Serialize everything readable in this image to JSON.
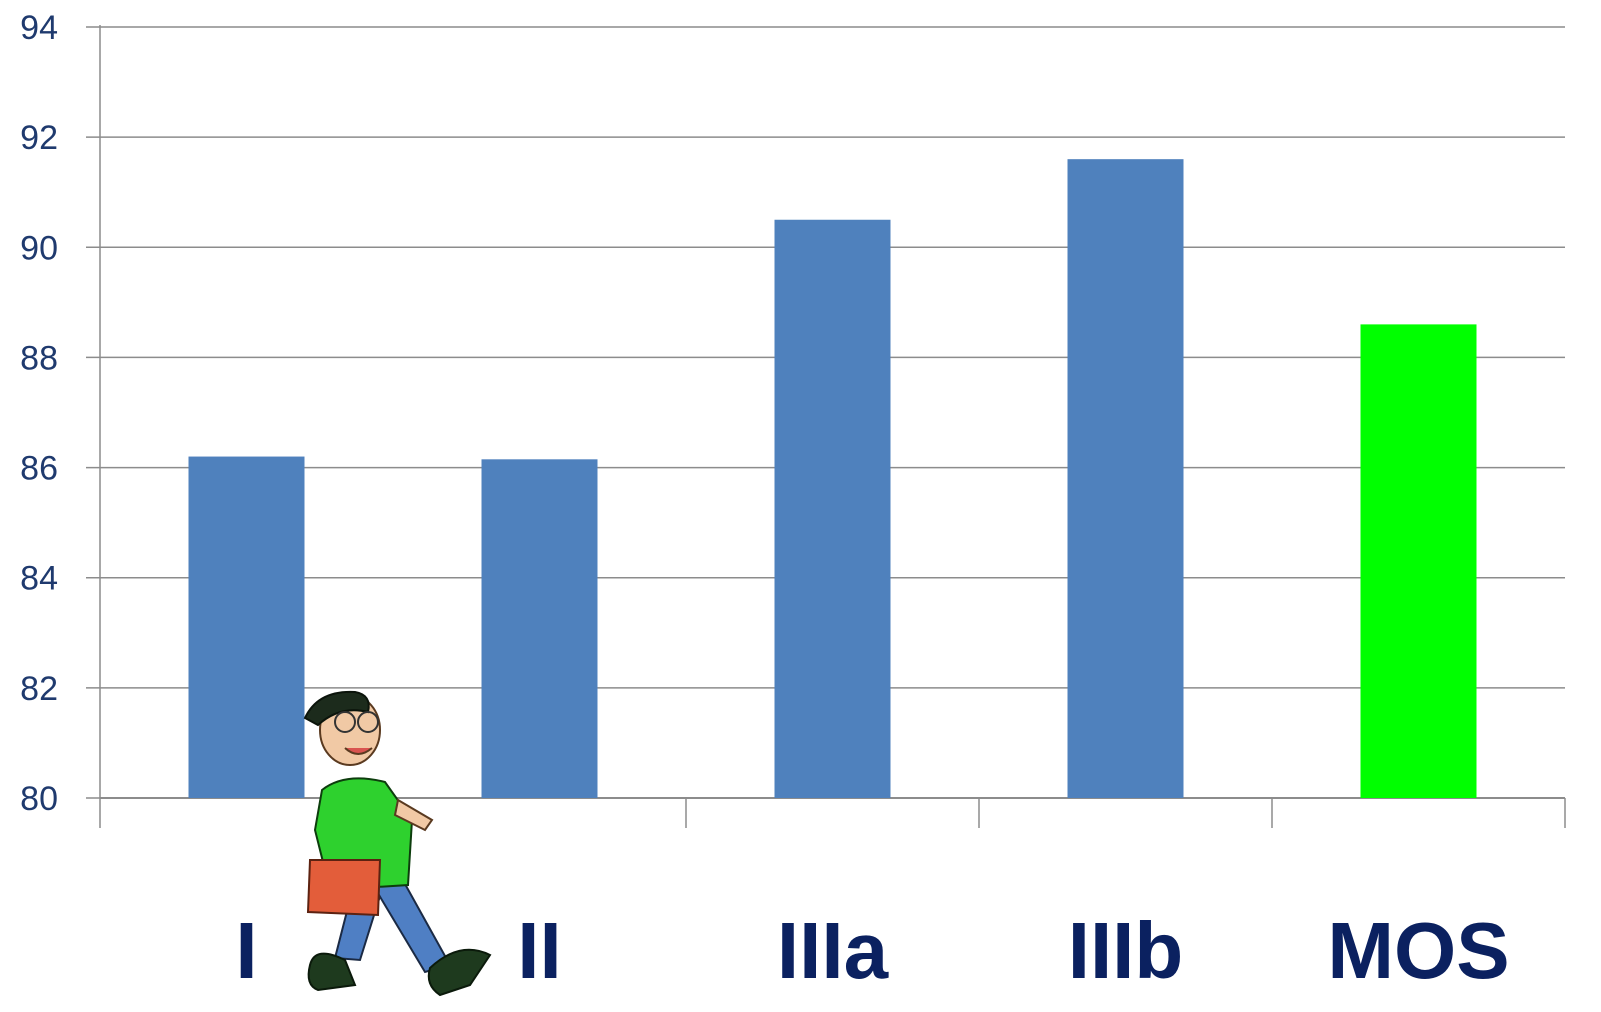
{
  "chart_data": {
    "type": "bar",
    "title": "",
    "xlabel": "",
    "ylabel": "",
    "categories": [
      "I",
      "II",
      "IIIa",
      "IIIb",
      "MOS"
    ],
    "values": [
      86.2,
      86.15,
      90.5,
      91.6,
      88.6
    ],
    "bar_colors": [
      "#4f81bd",
      "#4f81bd",
      "#4f81bd",
      "#4f81bd",
      "#00ff00"
    ],
    "ylim": [
      80,
      94
    ],
    "yticks": [
      "80",
      "82",
      "84",
      "86",
      "88",
      "90",
      "92",
      "94"
    ],
    "grid": true,
    "legend": "none"
  },
  "decoration": {
    "icon": "walking-student-clipart-icon"
  }
}
